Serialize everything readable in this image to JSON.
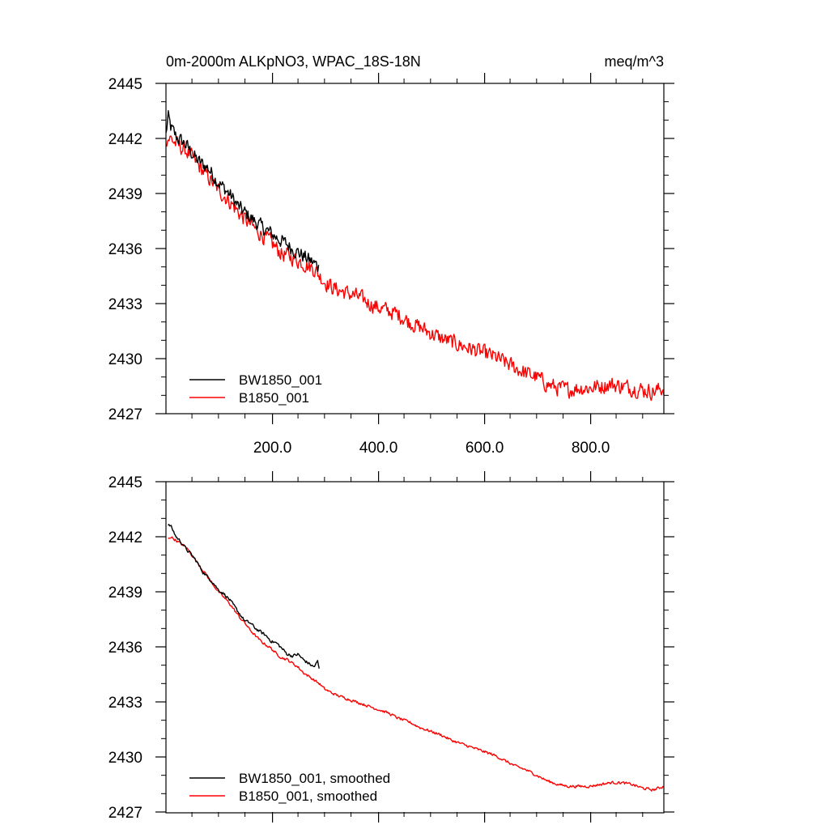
{
  "chart_data": [
    {
      "type": "line",
      "title": "0m-2000m ALKpNO3, WPAC_18S-18N",
      "units": "meq/m^3",
      "xlabel": "",
      "ylabel": "",
      "xlim": [
        1,
        940
      ],
      "ylim": [
        2427,
        2445
      ],
      "xticks": [
        200,
        400,
        600,
        800
      ],
      "xtick_labels": [
        "200.0",
        "400.0",
        "600.0",
        "800.0"
      ],
      "yticks": [
        2427,
        2430,
        2433,
        2436,
        2439,
        2442,
        2445
      ],
      "ytick_labels": [
        "2427",
        "2430",
        "2433",
        "2436",
        "2439",
        "2442",
        "2445"
      ],
      "legend_position": "bottom-left",
      "series": [
        {
          "name": "BW1850_001",
          "color": "#000000",
          "noise": 0.55,
          "x": [
            1,
            5,
            10,
            20,
            40,
            60,
            80,
            100,
            120,
            140,
            160,
            180,
            200,
            220,
            240,
            260,
            280,
            290
          ],
          "y": [
            2442.2,
            2443.2,
            2442.6,
            2442.1,
            2441.6,
            2440.8,
            2440.4,
            2439.6,
            2439.0,
            2438.2,
            2437.7,
            2437.2,
            2436.8,
            2436.4,
            2436.0,
            2435.6,
            2435.2,
            2435.0
          ]
        },
        {
          "name": "B1850_001",
          "color": "#ff0000",
          "noise": 0.6,
          "x": [
            1,
            10,
            20,
            40,
            60,
            80,
            100,
            120,
            140,
            160,
            180,
            200,
            220,
            240,
            260,
            280,
            300,
            320,
            340,
            360,
            380,
            400,
            420,
            440,
            460,
            480,
            500,
            520,
            540,
            560,
            580,
            600,
            620,
            640,
            660,
            680,
            700,
            720,
            740,
            760,
            780,
            800,
            820,
            840,
            860,
            880,
            900,
            920,
            940
          ],
          "y": [
            2442.0,
            2442.0,
            2441.7,
            2441.3,
            2440.6,
            2439.9,
            2439.2,
            2438.6,
            2437.9,
            2437.3,
            2436.8,
            2436.3,
            2435.7,
            2435.5,
            2435.2,
            2434.9,
            2434.2,
            2433.8,
            2433.6,
            2433.4,
            2433.1,
            2432.8,
            2432.6,
            2432.4,
            2432.0,
            2431.7,
            2431.4,
            2431.1,
            2430.9,
            2430.7,
            2430.5,
            2430.3,
            2430.1,
            2429.8,
            2429.5,
            2429.2,
            2429.0,
            2428.6,
            2428.4,
            2428.3,
            2428.4,
            2428.4,
            2428.5,
            2428.6,
            2428.5,
            2428.4,
            2428.3,
            2428.2,
            2428.4
          ]
        }
      ]
    },
    {
      "type": "line",
      "title": "",
      "xlabel": "",
      "ylabel": "",
      "xlim": [
        1,
        940
      ],
      "ylim": [
        2427,
        2445
      ],
      "xticks": [
        200,
        400,
        600,
        800
      ],
      "yticks": [
        2427,
        2430,
        2433,
        2436,
        2439,
        2442,
        2445
      ],
      "ytick_labels": [
        "2427",
        "2430",
        "2433",
        "2436",
        "2439",
        "2442",
        "2445"
      ],
      "legend_position": "bottom-left",
      "series": [
        {
          "name": "BW1850_001, smoothed",
          "color": "#000000",
          "noise": 0.12,
          "x": [
            5,
            10,
            15,
            20,
            30,
            40,
            50,
            60,
            70,
            80,
            90,
            100,
            110,
            120,
            130,
            140,
            150,
            160,
            170,
            180,
            190,
            200,
            210,
            220,
            230,
            240,
            250,
            260,
            270,
            280,
            287,
            290
          ],
          "y": [
            2442.6,
            2442.6,
            2442.3,
            2442.0,
            2441.7,
            2441.3,
            2441.0,
            2440.6,
            2440.1,
            2439.8,
            2439.5,
            2439.1,
            2438.9,
            2438.6,
            2438.2,
            2437.8,
            2437.4,
            2437.3,
            2437.0,
            2436.8,
            2436.6,
            2436.3,
            2436.2,
            2435.9,
            2435.6,
            2435.5,
            2435.6,
            2435.3,
            2435.1,
            2434.9,
            2435.2,
            2434.8
          ]
        },
        {
          "name": "B1850_001, smoothed",
          "color": "#ff0000",
          "noise": 0.1,
          "x": [
            5,
            10,
            20,
            30,
            40,
            50,
            60,
            70,
            80,
            90,
            100,
            110,
            120,
            130,
            140,
            150,
            160,
            170,
            180,
            190,
            200,
            210,
            220,
            230,
            240,
            250,
            260,
            270,
            280,
            290,
            300,
            320,
            340,
            360,
            380,
            400,
            420,
            440,
            460,
            480,
            500,
            520,
            540,
            560,
            580,
            600,
            620,
            640,
            660,
            680,
            700,
            720,
            740,
            760,
            780,
            800,
            820,
            840,
            860,
            880,
            900,
            920,
            940
          ],
          "y": [
            2441.9,
            2442.0,
            2441.8,
            2441.6,
            2441.4,
            2441.0,
            2440.6,
            2440.2,
            2439.8,
            2439.4,
            2439.0,
            2438.7,
            2438.4,
            2438.0,
            2437.6,
            2437.3,
            2436.9,
            2436.6,
            2436.3,
            2436.1,
            2435.9,
            2435.6,
            2435.4,
            2435.3,
            2435.1,
            2434.9,
            2434.6,
            2434.4,
            2434.2,
            2434.0,
            2433.7,
            2433.4,
            2433.2,
            2433.0,
            2432.8,
            2432.6,
            2432.4,
            2432.1,
            2431.9,
            2431.6,
            2431.4,
            2431.2,
            2430.9,
            2430.7,
            2430.5,
            2430.3,
            2430.1,
            2429.8,
            2429.5,
            2429.3,
            2429.0,
            2428.7,
            2428.5,
            2428.4,
            2428.4,
            2428.4,
            2428.5,
            2428.6,
            2428.6,
            2428.5,
            2428.3,
            2428.2,
            2428.4
          ]
        }
      ]
    }
  ]
}
